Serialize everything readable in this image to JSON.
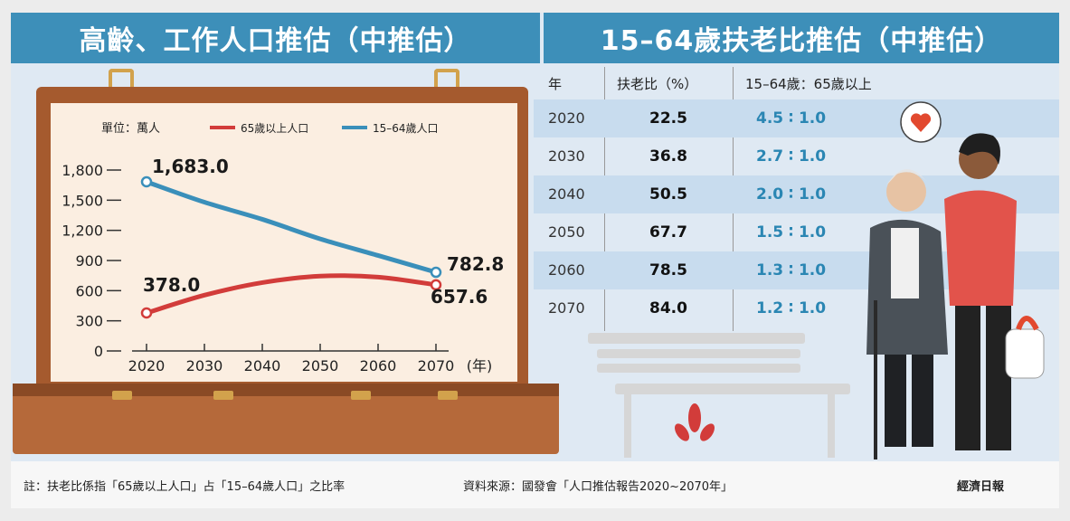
{
  "titles": {
    "left": "高齡、工作人口推估（中推估）",
    "right": "15–64歲扶老比推估（中推估）"
  },
  "legend": {
    "unit": "單位：萬人",
    "series_a": "65歲以上人口",
    "series_b": "15–64歲人口"
  },
  "colors": {
    "series_65": "#d23c3a",
    "series_1564": "#3a8fba",
    "banner": "#3d8fb9"
  },
  "chart_data": {
    "type": "line",
    "x": [
      2020,
      2030,
      2040,
      2050,
      2060,
      2070
    ],
    "xunit": "(年)",
    "ylim": [
      0,
      1800
    ],
    "yticks": [
      "0",
      "300",
      "600",
      "900",
      "1,200",
      "1,500",
      "1,800"
    ],
    "series": [
      {
        "name": "15–64歲人口",
        "values": [
          1683.0,
          1480,
          1310,
          1115,
          950,
          782.8
        ]
      },
      {
        "name": "65歲以上人口",
        "values": [
          378.0,
          555,
          680,
          745,
          735,
          657.6
        ]
      }
    ],
    "annotations": {
      "series_1564_start": "1,683.0",
      "series_1564_end": "782.8",
      "series_65_start": "378.0",
      "series_65_end": "657.6"
    }
  },
  "table": {
    "headers": [
      "年",
      "扶老比（%）",
      "15–64歲：65歲以上"
    ],
    "rows": [
      {
        "year": "2020",
        "ratio": "22.5",
        "support": "4.5 ∶ 1.0"
      },
      {
        "year": "2030",
        "ratio": "36.8",
        "support": "2.7 ∶ 1.0"
      },
      {
        "year": "2040",
        "ratio": "50.5",
        "support": "2.0 ∶ 1.0"
      },
      {
        "year": "2050",
        "ratio": "67.7",
        "support": "1.5 ∶ 1.0"
      },
      {
        "year": "2060",
        "ratio": "78.5",
        "support": "1.3 ∶ 1.0"
      },
      {
        "year": "2070",
        "ratio": "84.0",
        "support": "1.2 ∶ 1.0"
      }
    ]
  },
  "footer": {
    "note": "註：扶老比係指「65歲以上人口」占「15–64歲人口」之比率",
    "source": "資料來源：國發會「人口推估報告2020~2070年」",
    "brand": "經濟日報"
  }
}
